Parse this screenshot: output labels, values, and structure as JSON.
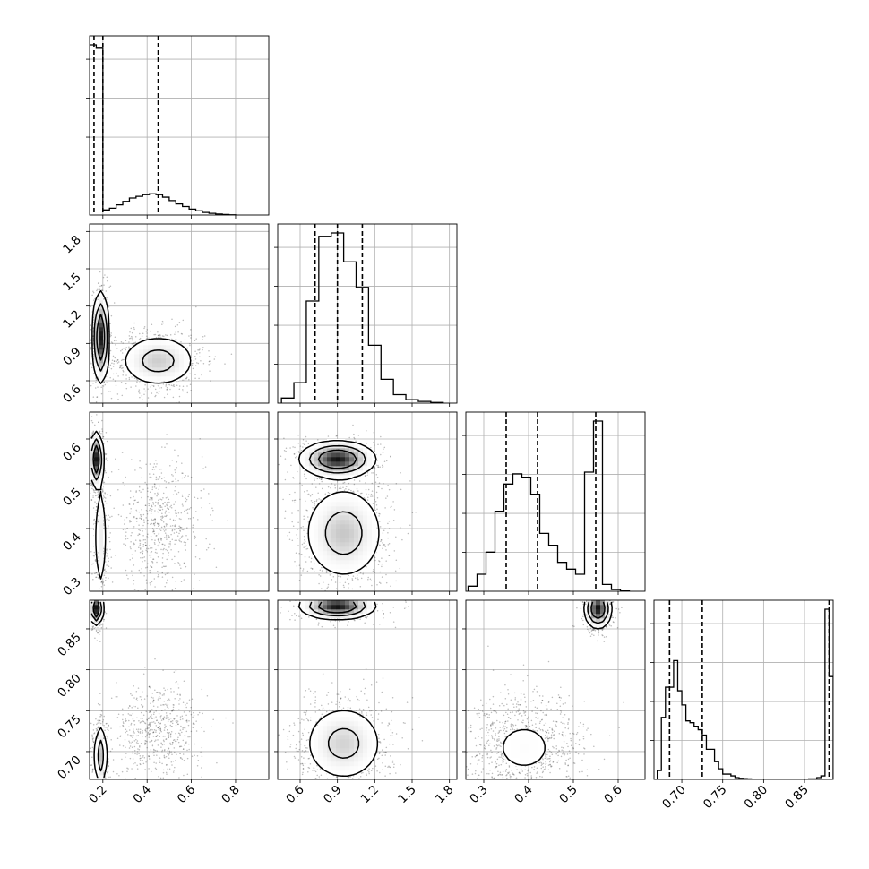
{
  "chart_data": {
    "type": "scatter",
    "subtype": "corner-plot",
    "grid": true,
    "title": "",
    "parameters": [
      {
        "label": "",
        "range": [
          0.14,
          0.95
        ],
        "ticks": [
          0.2,
          0.4,
          0.6,
          0.8
        ],
        "tick_labels": [
          "0.2",
          "0.4",
          "0.6",
          "0.8"
        ]
      },
      {
        "label": "",
        "range": [
          0.42,
          1.86
        ],
        "ticks": [
          0.6,
          0.9,
          1.2,
          1.5,
          1.8
        ],
        "tick_labels": [
          "0.6",
          "0.9",
          "1.2",
          "1.5",
          "1.8"
        ]
      },
      {
        "label": "",
        "range": [
          0.26,
          0.66
        ],
        "ticks": [
          0.3,
          0.4,
          0.5,
          0.6
        ],
        "tick_labels": [
          "0.3",
          "0.4",
          "0.5",
          "0.6"
        ]
      },
      {
        "label": "",
        "range": [
          0.666,
          0.885
        ],
        "ticks": [
          0.7,
          0.75,
          0.8,
          0.85
        ],
        "tick_labels": [
          "0.70",
          "0.75",
          "0.80",
          "0.85"
        ]
      }
    ],
    "histograms": [
      {
        "parameter": 0,
        "bin_centers": [
          0.155,
          0.185,
          0.215,
          0.245,
          0.275,
          0.305,
          0.335,
          0.365,
          0.395,
          0.425,
          0.455,
          0.485,
          0.515,
          0.545,
          0.575,
          0.605,
          0.635,
          0.665,
          0.695,
          0.725,
          0.755,
          0.785
        ],
        "counts": [
          1.0,
          0.98,
          0.03,
          0.04,
          0.06,
          0.08,
          0.1,
          0.11,
          0.12,
          0.125,
          0.12,
          0.105,
          0.085,
          0.065,
          0.05,
          0.035,
          0.025,
          0.015,
          0.01,
          0.006,
          0.003,
          0.001
        ],
        "quantiles": [
          0.16,
          0.2,
          0.45
        ]
      },
      {
        "parameter": 1,
        "bin_centers": [
          0.5,
          0.6,
          0.7,
          0.8,
          0.9,
          1.0,
          1.1,
          1.2,
          1.3,
          1.4,
          1.5,
          1.6,
          1.7
        ],
        "counts": [
          0.03,
          0.12,
          0.6,
          0.98,
          1.0,
          0.83,
          0.68,
          0.34,
          0.14,
          0.05,
          0.02,
          0.01,
          0.004
        ],
        "quantiles": [
          0.72,
          0.9,
          1.1
        ]
      },
      {
        "parameter": 2,
        "bin_centers": [
          0.275,
          0.295,
          0.315,
          0.335,
          0.355,
          0.375,
          0.395,
          0.415,
          0.435,
          0.455,
          0.475,
          0.495,
          0.515,
          0.535,
          0.555,
          0.575,
          0.595,
          0.615
        ],
        "counts": [
          0.03,
          0.1,
          0.23,
          0.47,
          0.63,
          0.69,
          0.67,
          0.57,
          0.34,
          0.27,
          0.17,
          0.13,
          0.1,
          0.7,
          1.0,
          0.04,
          0.01,
          0.002
        ],
        "quantiles": [
          0.35,
          0.42,
          0.55
        ]
      },
      {
        "parameter": 3,
        "bin_centers": [
          0.6725,
          0.6775,
          0.6825,
          0.6875,
          0.6925,
          0.6975,
          0.7025,
          0.7075,
          0.7125,
          0.7175,
          0.7225,
          0.7275,
          0.7325,
          0.7375,
          0.7425,
          0.7475,
          0.7525,
          0.7575,
          0.7625,
          0.7675,
          0.7725,
          0.7775,
          0.7825,
          0.7875,
          0.8575,
          0.8625,
          0.8675,
          0.8725,
          0.8775,
          0.8825
        ],
        "counts": [
          0.05,
          0.35,
          0.52,
          0.52,
          0.67,
          0.5,
          0.42,
          0.33,
          0.32,
          0.3,
          0.28,
          0.25,
          0.17,
          0.17,
          0.1,
          0.06,
          0.03,
          0.03,
          0.02,
          0.01,
          0.006,
          0.004,
          0.003,
          0.002,
          0.003,
          0.003,
          0.01,
          0.02,
          0.96,
          0.58
        ],
        "quantiles": [
          0.685,
          0.725,
          0.88
        ]
      }
    ],
    "panels": [
      {
        "x": 0,
        "y": 1,
        "blobs": [
          {
            "center": [
              0.19,
              0.95
            ],
            "spread": [
              0.018,
              0.18
            ],
            "weight": 0.42
          },
          {
            "center": [
              0.45,
              0.76
            ],
            "spread": [
              0.09,
              0.11
            ],
            "weight": 0.58
          }
        ]
      },
      {
        "x": 0,
        "y": 2,
        "blobs": [
          {
            "center": [
              0.17,
              0.555
            ],
            "spread": [
              0.015,
              0.03
            ],
            "weight": 0.35
          },
          {
            "center": [
              0.19,
              0.38
            ],
            "spread": [
              0.016,
              0.07
            ],
            "weight": 0.25
          },
          {
            "center": [
              0.45,
              0.405
            ],
            "spread": [
              0.09,
              0.06
            ],
            "weight": 0.4
          }
        ]
      },
      {
        "x": 0,
        "y": 3,
        "blobs": [
          {
            "center": [
              0.17,
              0.875
            ],
            "spread": [
              0.015,
              0.01
            ],
            "weight": 0.3
          },
          {
            "center": [
              0.19,
              0.695
            ],
            "spread": [
              0.015,
              0.02
            ],
            "weight": 0.3
          },
          {
            "center": [
              0.45,
              0.725
            ],
            "spread": [
              0.09,
              0.025
            ],
            "weight": 0.4
          }
        ]
      },
      {
        "x": 1,
        "y": 2,
        "blobs": [
          {
            "center": [
              0.9,
              0.555
            ],
            "spread": [
              0.15,
              0.02
            ],
            "weight": 0.4
          },
          {
            "center": [
              0.95,
              0.39
            ],
            "spread": [
              0.17,
              0.055
            ],
            "weight": 0.6
          }
        ]
      },
      {
        "x": 1,
        "y": 3,
        "blobs": [
          {
            "center": [
              0.9,
              0.878
            ],
            "spread": [
              0.15,
              0.008
            ],
            "weight": 0.4
          },
          {
            "center": [
              0.95,
              0.71
            ],
            "spread": [
              0.17,
              0.025
            ],
            "weight": 0.6
          }
        ]
      },
      {
        "x": 2,
        "y": 3,
        "blobs": [
          {
            "center": [
              0.555,
              0.875
            ],
            "spread": [
              0.015,
              0.012
            ],
            "weight": 0.4
          },
          {
            "center": [
              0.39,
              0.705
            ],
            "spread": [
              0.06,
              0.028
            ],
            "weight": 0.6
          }
        ]
      }
    ]
  }
}
